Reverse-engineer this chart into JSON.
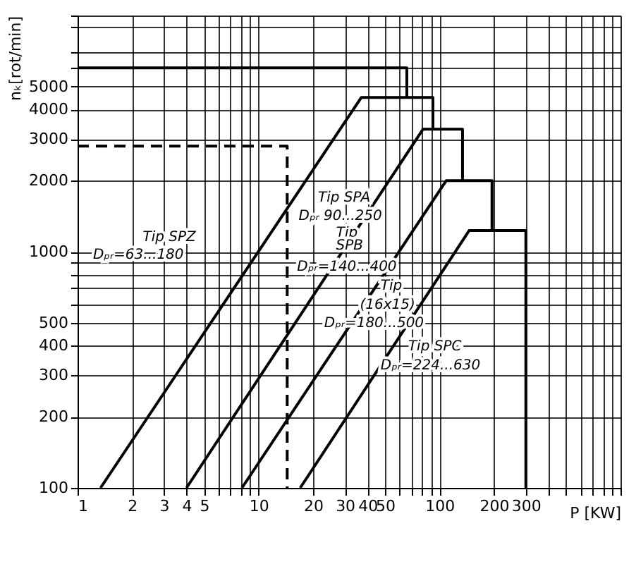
{
  "chart_data": {
    "type": "line",
    "xlabel": "P [KW]",
    "ylabel": "nₖ[rot/min]",
    "log": "xy",
    "grid": true,
    "legend": false,
    "marker": "none",
    "line_style": "solid",
    "xlim": [
      1,
      1000
    ],
    "ylim": [
      100,
      10000
    ],
    "xticks": [
      1,
      2,
      3,
      4,
      5,
      {
        "value": 6,
        "label": null
      },
      {
        "value": 7,
        "label": null
      },
      {
        "value": 8,
        "label": null
      },
      {
        "value": 9,
        "label": null
      },
      10,
      20,
      30,
      40,
      50,
      {
        "value": 60,
        "label": null
      },
      {
        "value": 70,
        "label": null
      },
      {
        "value": 80,
        "label": null
      },
      {
        "value": 90,
        "label": null
      },
      100,
      200,
      300,
      {
        "value": 400,
        "label": null
      },
      {
        "value": 500,
        "label": null
      },
      {
        "value": 600,
        "label": null
      },
      {
        "value": 700,
        "label": null
      },
      {
        "value": 800,
        "label": null
      },
      {
        "value": 900,
        "label": null
      },
      {
        "value": 1000,
        "label": null
      }
    ],
    "yticks": [
      100,
      200,
      300,
      400,
      500,
      {
        "value": 600,
        "label": null
      },
      {
        "value": 700,
        "label": null
      },
      {
        "value": 800,
        "label": null
      },
      {
        "value": 900,
        "label": null
      },
      1000,
      2000,
      3000,
      4000,
      5000,
      {
        "value": 6000,
        "label": null
      },
      {
        "value": 7000,
        "label": null
      },
      {
        "value": 9000,
        "label": null
      },
      {
        "value": 10000,
        "label": null
      }
    ],
    "series": [
      {
        "color": "#000000",
        "x": [
          1,
          66,
          66
        ],
        "values": [
          6000,
          6000,
          4500
        ]
      },
      {
        "color": "#000000",
        "x": [
          1.34,
          37,
          92,
          92
        ],
        "values": [
          100,
          4500,
          4500,
          3300
        ]
      },
      {
        "color": "#000000",
        "x": [
          4,
          81,
          134,
          134
        ],
        "values": [
          100,
          3300,
          3300,
          2000
        ]
      },
      {
        "color": "#000000",
        "x": [
          8.1,
          109,
          195,
          195
        ],
        "values": [
          100,
          2000,
          2000,
          1230
        ]
      },
      {
        "color": "#000000",
        "x": [
          17,
          146,
          300,
          300
        ],
        "values": [
          100,
          1230,
          1230,
          100
        ]
      },
      {
        "color": "#000000",
        "x": [
          1,
          14.4,
          14.4
        ],
        "values": [
          2800,
          2800,
          100
        ],
        "line_style": "dashed"
      }
    ],
    "annotations": [
      "Tip SPZ",
      "Dₚᵣ=63...180",
      "Tip SPA",
      "Dₚᵣ 90...250",
      "Tip",
      "SPB",
      "Dₚᵣ=140...400",
      "Tip",
      "(16x15)",
      "Dₚᵣ=180...500",
      "Tip SPC",
      "Dₚᵣ=224...630"
    ]
  }
}
